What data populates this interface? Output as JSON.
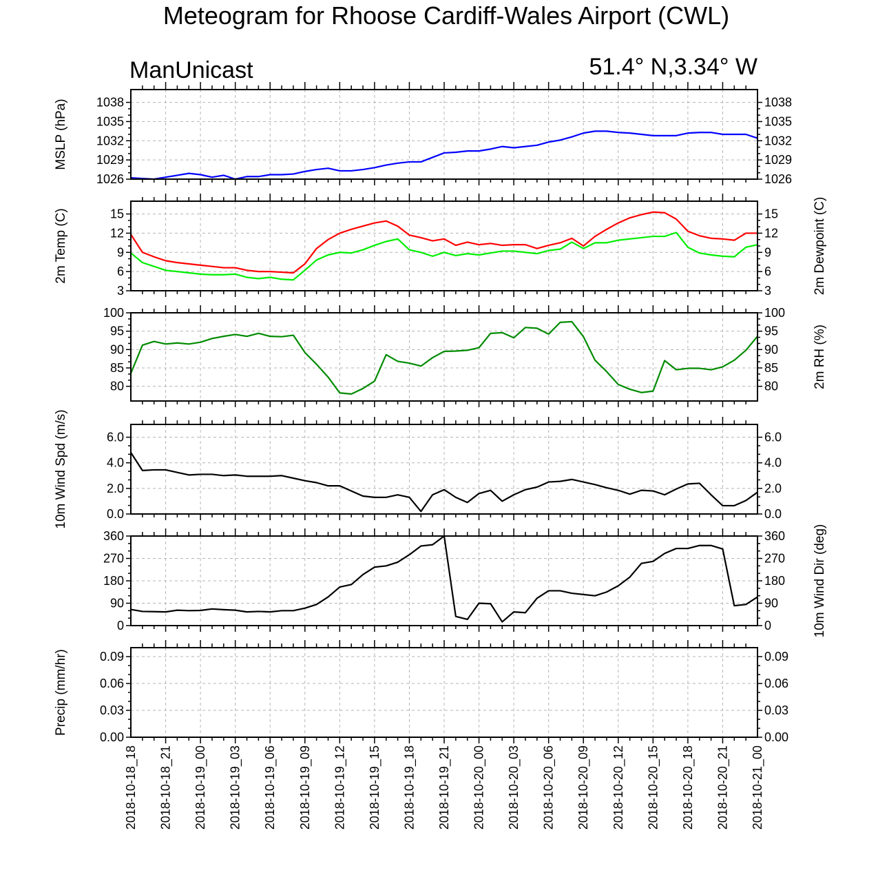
{
  "title": "Meteogram for Rhoose Cardiff-Wales Airport (CWL)",
  "model_name": "ManUnicast",
  "location": "51.4° N,3.34° W",
  "colors": {
    "mslp": "#0000ff",
    "temp": "#ff0000",
    "dewpoint": "#00ee00",
    "rh": "#008b00",
    "wind": "#000000",
    "grid": "#b4b4b4"
  },
  "chart_data": [
    {
      "id": "mslp",
      "type": "line",
      "ylabel": "MSLP (hPa)",
      "ylabel_right": "",
      "ylim": [
        1026,
        1040
      ],
      "yticks": [
        1026,
        1029,
        1032,
        1035,
        1038
      ],
      "tick_labels": [
        "1026",
        "1029",
        "1032",
        "1035",
        "1038"
      ],
      "series": [
        {
          "color": "#0000ff",
          "values": [
            1026.2,
            1026.1,
            1026.0,
            1026.3,
            1026.6,
            1026.9,
            1026.7,
            1026.3,
            1026.6,
            1026.0,
            1026.4,
            1026.4,
            1026.7,
            1026.7,
            1026.8,
            1027.2,
            1027.5,
            1027.7,
            1027.3,
            1027.3,
            1027.5,
            1027.8,
            1028.2,
            1028.5,
            1028.7,
            1028.7,
            1029.4,
            1030.1,
            1030.2,
            1030.4,
            1030.4,
            1030.7,
            1031.1,
            1030.9,
            1031.1,
            1031.3,
            1031.8,
            1032.1,
            1032.6,
            1033.2,
            1033.5,
            1033.5,
            1033.3,
            1033.2,
            1033.0,
            1032.8,
            1032.8,
            1032.8,
            1033.2,
            1033.3,
            1033.3,
            1033.0,
            1033.0,
            1033.0,
            1032.4
          ]
        }
      ]
    },
    {
      "id": "temp",
      "type": "line",
      "ylabel": "2m Temp (C)",
      "ylabel_right": "2m Dewpoint (C)",
      "ylim": [
        3,
        17
      ],
      "yticks": [
        3,
        6,
        9,
        12,
        15
      ],
      "tick_labels": [
        "3",
        "6",
        "9",
        "12",
        "15"
      ],
      "series": [
        {
          "color": "#ff0000",
          "values": [
            11.8,
            9.0,
            8.3,
            7.7,
            7.4,
            7.2,
            7.0,
            6.8,
            6.6,
            6.6,
            6.2,
            6.0,
            6.0,
            5.9,
            5.8,
            7.2,
            9.6,
            11.0,
            12.0,
            12.6,
            13.1,
            13.6,
            13.9,
            13.1,
            11.7,
            11.3,
            10.8,
            11.1,
            10.1,
            10.6,
            10.2,
            10.4,
            10.1,
            10.2,
            10.2,
            9.6,
            10.1,
            10.5,
            11.2,
            10.0,
            11.5,
            12.6,
            13.6,
            14.4,
            14.9,
            15.3,
            15.2,
            14.2,
            12.3,
            11.6,
            11.2,
            11.1,
            10.9,
            12.0,
            12.0
          ]
        },
        {
          "color": "#00ee00",
          "values": [
            8.9,
            7.4,
            6.8,
            6.2,
            6.0,
            5.8,
            5.6,
            5.5,
            5.5,
            5.6,
            5.1,
            4.9,
            5.1,
            4.8,
            4.7,
            6.2,
            7.8,
            8.6,
            9.0,
            8.9,
            9.4,
            10.1,
            10.7,
            11.1,
            9.4,
            9.0,
            8.4,
            9.0,
            8.5,
            8.8,
            8.6,
            8.9,
            9.2,
            9.2,
            9.0,
            8.8,
            9.3,
            9.5,
            10.6,
            9.6,
            10.5,
            10.5,
            10.9,
            11.1,
            11.3,
            11.5,
            11.5,
            12.1,
            9.8,
            8.9,
            8.6,
            8.4,
            8.3,
            9.8,
            10.2
          ]
        }
      ]
    },
    {
      "id": "rh",
      "type": "line",
      "ylabel": "",
      "ylabel_right": "2m RH (%)",
      "ylim": [
        76,
        100
      ],
      "yticks": [
        80,
        85,
        90,
        95,
        100
      ],
      "tick_labels": [
        "80",
        "85",
        "90",
        "95",
        "100"
      ],
      "series": [
        {
          "color": "#008b00",
          "values": [
            83.5,
            91.2,
            92.2,
            91.5,
            91.8,
            91.5,
            92.0,
            93.0,
            93.6,
            94.1,
            93.6,
            94.4,
            93.6,
            93.5,
            93.9,
            89.2,
            86.0,
            82.5,
            78.2,
            77.9,
            79.4,
            81.4,
            88.6,
            86.8,
            86.3,
            85.5,
            87.8,
            89.5,
            89.6,
            89.8,
            90.5,
            94.4,
            94.6,
            93.2,
            96.0,
            95.8,
            94.2,
            97.4,
            97.6,
            93.5,
            87.1,
            84.0,
            80.5,
            79.2,
            78.3,
            78.7,
            87.0,
            84.5,
            84.9,
            84.9,
            84.5,
            85.3,
            87.1,
            89.8,
            93.6
          ]
        }
      ]
    },
    {
      "id": "wind_speed",
      "type": "line",
      "ylabel": "10m Wind Spd (m/s)",
      "ylabel_right": "",
      "ylim": [
        0,
        7
      ],
      "yticks": [
        0,
        2,
        4,
        6
      ],
      "tick_labels": [
        "0.0",
        "2.0",
        "4.0",
        "6.0"
      ],
      "series": [
        {
          "color": "#000000",
          "values": [
            4.8,
            3.4,
            3.45,
            3.45,
            3.25,
            3.05,
            3.1,
            3.1,
            3.0,
            3.05,
            2.95,
            2.95,
            2.95,
            3.0,
            2.8,
            2.6,
            2.45,
            2.2,
            2.2,
            1.8,
            1.4,
            1.3,
            1.3,
            1.5,
            1.3,
            0.2,
            1.5,
            1.9,
            1.3,
            0.9,
            1.6,
            1.85,
            1.0,
            1.5,
            1.9,
            2.1,
            2.5,
            2.55,
            2.7,
            2.5,
            2.3,
            2.05,
            1.85,
            1.55,
            1.85,
            1.8,
            1.5,
            1.95,
            2.35,
            2.4,
            1.5,
            0.65,
            0.65,
            1.05,
            1.7
          ]
        }
      ]
    },
    {
      "id": "wind_dir",
      "type": "line",
      "ylabel": "",
      "ylabel_right": "10m Wind Dir (deg)",
      "ylim": [
        0,
        360
      ],
      "yticks": [
        0,
        90,
        180,
        270,
        360
      ],
      "tick_labels": [
        "0",
        "90",
        "180",
        "270",
        "360"
      ],
      "series": [
        {
          "color": "#000000",
          "values": [
            65,
            57,
            56,
            55,
            62,
            60,
            61,
            67,
            64,
            62,
            55,
            57,
            55,
            60,
            60,
            70,
            85,
            115,
            155,
            165,
            205,
            235,
            240,
            255,
            285,
            320,
            325,
            360,
            37,
            25,
            90,
            88,
            15,
            55,
            52,
            110,
            140,
            140,
            130,
            125,
            120,
            135,
            160,
            195,
            250,
            258,
            290,
            310,
            310,
            322,
            322,
            308,
            80,
            85,
            115
          ]
        }
      ]
    },
    {
      "id": "precip",
      "type": "bar",
      "ylabel": "Precip (mm/hr)",
      "ylabel_right": "",
      "ylim": [
        0,
        0.1
      ],
      "yticks": [
        0,
        0.03,
        0.06,
        0.09
      ],
      "tick_labels": [
        "0.00",
        "0.03",
        "0.06",
        "0.09"
      ],
      "series": [
        {
          "color": "#000000",
          "values": []
        }
      ]
    }
  ],
  "x_axis": {
    "labels": [
      "2018-10-18_18",
      "2018-10-18_21",
      "2018-10-19_00",
      "2018-10-19_03",
      "2018-10-19_06",
      "2018-10-19_09",
      "2018-10-19_12",
      "2018-10-19_15",
      "2018-10-19_18",
      "2018-10-19_21",
      "2018-10-20_00",
      "2018-10-20_03",
      "2018-10-20_06",
      "2018-10-20_09",
      "2018-10-20_12",
      "2018-10-20_15",
      "2018-10-20_18",
      "2018-10-20_21",
      "2018-10-21_00"
    ],
    "hours_per_label": 3,
    "total_hours": 54
  }
}
